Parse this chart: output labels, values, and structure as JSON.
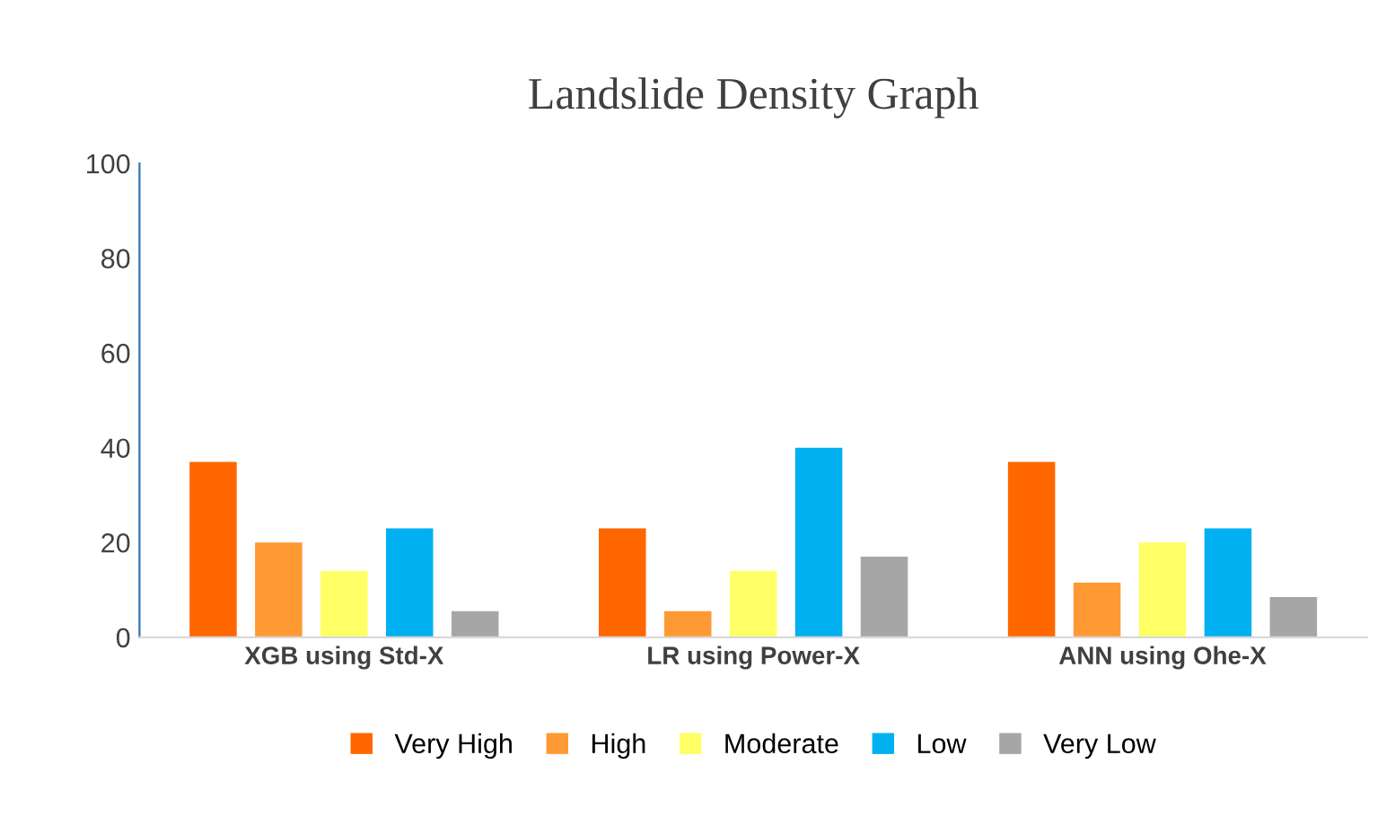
{
  "chart_data": {
    "type": "bar",
    "title": "Landslide Density Graph",
    "categories": [
      "XGB using Std-X",
      "LR using Power-X",
      "ANN using Ohe-X"
    ],
    "series": [
      {
        "name": "Very High",
        "color": "#ff6600",
        "values": [
          37,
          23,
          37
        ]
      },
      {
        "name": "High",
        "color": "#ff9933",
        "values": [
          20,
          5.5,
          11.5
        ]
      },
      {
        "name": "Moderate",
        "color": "#ffff66",
        "values": [
          14,
          14,
          20
        ]
      },
      {
        "name": "Low",
        "color": "#00b0f0",
        "values": [
          23,
          40,
          23
        ]
      },
      {
        "name": "Very Low",
        "color": "#a6a6a6",
        "values": [
          5.5,
          17,
          8.5
        ]
      }
    ],
    "ylim": [
      0,
      100
    ],
    "yticks": [
      0,
      20,
      40,
      60,
      80,
      100
    ],
    "grid": false,
    "legend": "bottom"
  }
}
